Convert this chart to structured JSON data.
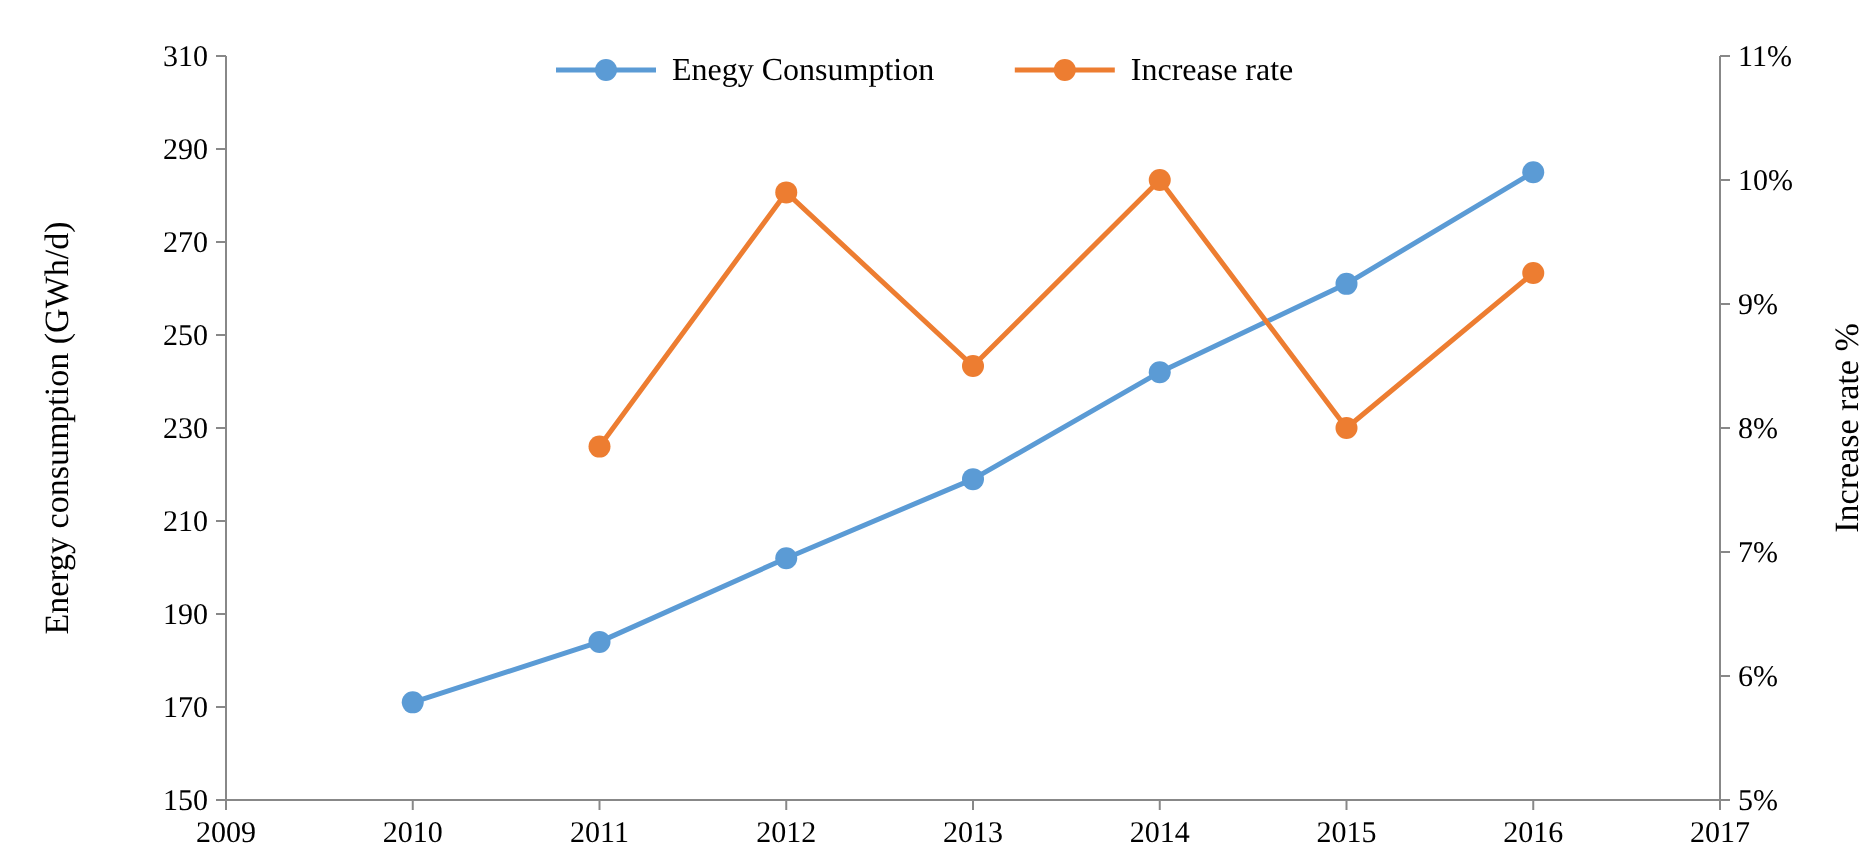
{
  "chart_data": {
    "type": "line",
    "x": [
      2010,
      2011,
      2012,
      2013,
      2014,
      2015,
      2016
    ],
    "series": [
      {
        "name": "Enegy Consumption",
        "color": "#5b9bd5",
        "values": [
          171,
          184,
          202,
          219,
          242,
          261,
          285
        ]
      },
      {
        "name": "Increase rate",
        "color": "#ed7d31",
        "axis": "y2",
        "values": [
          null,
          7.85,
          9.9,
          8.5,
          10.0,
          8.0,
          9.25
        ]
      }
    ],
    "xlim": [
      2009,
      2017
    ],
    "xticks": [
      2009,
      2010,
      2011,
      2012,
      2013,
      2014,
      2015,
      2016,
      2017
    ],
    "ylim": [
      150,
      310
    ],
    "yticks": [
      150,
      170,
      190,
      210,
      230,
      250,
      270,
      290,
      310
    ],
    "y2lim": [
      5,
      11
    ],
    "y2ticks": [
      {
        "value": 5,
        "label": "5%"
      },
      {
        "value": 6,
        "label": "6%"
      },
      {
        "value": 7,
        "label": "7%"
      },
      {
        "value": 8,
        "label": "8%"
      },
      {
        "value": 9,
        "label": "9%"
      },
      {
        "value": 10,
        "label": "10%"
      },
      {
        "value": 11,
        "label": "11%"
      }
    ],
    "ylabel": "Energy consumption (GWh/d)",
    "y2label": "Increase rate %",
    "legend": "top",
    "marker": "circle",
    "line_style": "solid"
  }
}
